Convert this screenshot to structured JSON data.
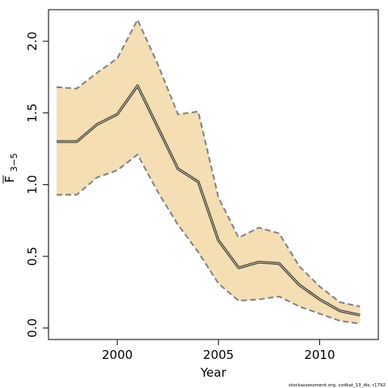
{
  "chart_data": {
    "type": "line",
    "xlabel": "Year",
    "ylabel": "F",
    "ylabel_subscript": "3−5",
    "xlim": [
      1996.6,
      2012.9
    ],
    "ylim": [
      -0.08,
      2.22
    ],
    "xticks": [
      2000,
      2005,
      2010
    ],
    "yticks": [
      0.0,
      0.5,
      1.0,
      1.5,
      2.0
    ],
    "xtick_labels": [
      "2000",
      "2005",
      "2010"
    ],
    "ytick_labels": [
      "0.0",
      "0.5",
      "1.0",
      "1.5",
      "2.0"
    ],
    "band_color": "#f5deb3",
    "band_edge_color": "#7f7f7f",
    "line_color": "#333333",
    "x": [
      1997,
      1998,
      1999,
      2000,
      2001,
      2002,
      2003,
      2004,
      2005,
      2006,
      2007,
      2008,
      2009,
      2010,
      2011,
      2012
    ],
    "series": [
      {
        "values": [
          1.3,
          1.3,
          1.42,
          1.49,
          1.69,
          1.4,
          1.11,
          1.02,
          0.61,
          0.42,
          0.46,
          0.45,
          0.3,
          0.2,
          0.12,
          0.09
        ]
      }
    ],
    "upper": [
      1.68,
      1.67,
      1.78,
      1.88,
      2.15,
      1.84,
      1.49,
      1.51,
      0.91,
      0.63,
      0.7,
      0.66,
      0.43,
      0.29,
      0.18,
      0.15
    ],
    "lower": [
      0.93,
      0.93,
      1.05,
      1.1,
      1.21,
      0.95,
      0.72,
      0.53,
      0.31,
      0.19,
      0.2,
      0.22,
      0.15,
      0.1,
      0.05,
      0.03
    ]
  },
  "footer": {
    "credit": "stockassessment.org, codkat_13_dis, r1792"
  }
}
